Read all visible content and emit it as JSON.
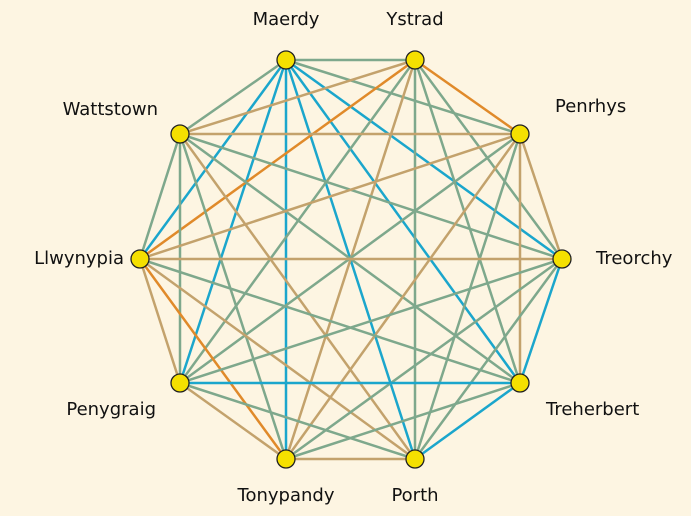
{
  "nodes": [
    {
      "label": "Maerdy"
    },
    {
      "label": "Ystrad"
    },
    {
      "label": "Penrhys"
    },
    {
      "label": "Treorchy"
    },
    {
      "label": "Treherbert"
    },
    {
      "label": "Porth"
    },
    {
      "label": "Tonypandy"
    },
    {
      "label": "Penygraig"
    },
    {
      "label": "Llwynypia"
    },
    {
      "label": "Wattstown"
    }
  ],
  "node_color": "#f5e000",
  "edges": [
    {
      "from": "Maerdy",
      "to": "Ystrad",
      "color": "#7ea88c"
    },
    {
      "from": "Maerdy",
      "to": "Wattstown",
      "color": "#7ea88c"
    },
    {
      "from": "Ystrad",
      "to": "Penrhys",
      "color": "#e08a2a"
    },
    {
      "from": "Penrhys",
      "to": "Treorchy",
      "color": "#c3a26c"
    },
    {
      "from": "Treorchy",
      "to": "Treherbert",
      "color": "#1ba6cc"
    },
    {
      "from": "Treherbert",
      "to": "Porth",
      "color": "#1ba6cc"
    },
    {
      "from": "Porth",
      "to": "Tonypandy",
      "color": "#c3a26c"
    },
    {
      "from": "Tonypandy",
      "to": "Penygraig",
      "color": "#c3a26c"
    },
    {
      "from": "Penygraig",
      "to": "Llwynypia",
      "color": "#c3a26c"
    },
    {
      "from": "Llwynypia",
      "to": "Wattstown",
      "color": "#7ea88c"
    },
    {
      "from": "Maerdy",
      "to": "Penrhys",
      "color": "#7ea88c"
    },
    {
      "from": "Maerdy",
      "to": "Treorchy",
      "color": "#1ba6cc"
    },
    {
      "from": "Maerdy",
      "to": "Treherbert",
      "color": "#1ba6cc"
    },
    {
      "from": "Maerdy",
      "to": "Porth",
      "color": "#1ba6cc"
    },
    {
      "from": "Maerdy",
      "to": "Tonypandy",
      "color": "#1ba6cc"
    },
    {
      "from": "Maerdy",
      "to": "Penygraig",
      "color": "#1ba6cc"
    },
    {
      "from": "Maerdy",
      "to": "Llwynypia",
      "color": "#1ba6cc"
    },
    {
      "from": "Ystrad",
      "to": "Wattstown",
      "color": "#c3a26c"
    },
    {
      "from": "Ystrad",
      "to": "Llwynypia",
      "color": "#e08a2a"
    },
    {
      "from": "Ystrad",
      "to": "Penygraig",
      "color": "#7ea88c"
    },
    {
      "from": "Ystrad",
      "to": "Tonypandy",
      "color": "#c3a26c"
    },
    {
      "from": "Ystrad",
      "to": "Porth",
      "color": "#7ea88c"
    },
    {
      "from": "Ystrad",
      "to": "Treherbert",
      "color": "#7ea88c"
    },
    {
      "from": "Ystrad",
      "to": "Treorchy",
      "color": "#7ea88c"
    },
    {
      "from": "Wattstown",
      "to": "Penrhys",
      "color": "#c3a26c"
    },
    {
      "from": "Wattstown",
      "to": "Treorchy",
      "color": "#7ea88c"
    },
    {
      "from": "Wattstown",
      "to": "Treherbert",
      "color": "#7ea88c"
    },
    {
      "from": "Wattstown",
      "to": "Porth",
      "color": "#c3a26c"
    },
    {
      "from": "Wattstown",
      "to": "Tonypandy",
      "color": "#7ea88c"
    },
    {
      "from": "Wattstown",
      "to": "Penygraig",
      "color": "#7ea88c"
    },
    {
      "from": "Penrhys",
      "to": "Llwynypia",
      "color": "#c3a26c"
    },
    {
      "from": "Penrhys",
      "to": "Penygraig",
      "color": "#7ea88c"
    },
    {
      "from": "Penrhys",
      "to": "Tonypandy",
      "color": "#c3a26c"
    },
    {
      "from": "Penrhys",
      "to": "Porth",
      "color": "#7ea88c"
    },
    {
      "from": "Penrhys",
      "to": "Treherbert",
      "color": "#c3a26c"
    },
    {
      "from": "Llwynypia",
      "to": "Treorchy",
      "color": "#c3a26c"
    },
    {
      "from": "Llwynypia",
      "to": "Treherbert",
      "color": "#7ea88c"
    },
    {
      "from": "Llwynypia",
      "to": "Porth",
      "color": "#c3a26c"
    },
    {
      "from": "Llwynypia",
      "to": "Tonypandy",
      "color": "#e08a2a"
    },
    {
      "from": "Treorchy",
      "to": "Penygraig",
      "color": "#7ea88c"
    },
    {
      "from": "Treorchy",
      "to": "Tonypandy",
      "color": "#7ea88c"
    },
    {
      "from": "Treorchy",
      "to": "Porth",
      "color": "#7ea88c"
    },
    {
      "from": "Penygraig",
      "to": "Treherbert",
      "color": "#1ba6cc"
    },
    {
      "from": "Penygraig",
      "to": "Porth",
      "color": "#7ea88c"
    },
    {
      "from": "Treherbert",
      "to": "Tonypandy",
      "color": "#7ea88c"
    }
  ]
}
